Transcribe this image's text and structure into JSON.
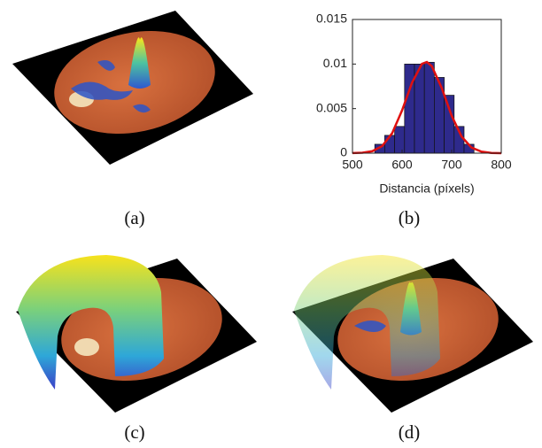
{
  "captions": [
    "(a)",
    "(b)",
    "(c)",
    "(d)"
  ],
  "chart_data": {
    "type": "histogram",
    "xlabel": "Distancia (píxels)",
    "bins": [
      545,
      565,
      585,
      605,
      625,
      645,
      665,
      685,
      705,
      725,
      745
    ],
    "values": [
      0.001,
      0.002,
      0.003,
      0.01,
      0.01,
      0.0102,
      0.0085,
      0.0065,
      0.003,
      0.001
    ],
    "color": "#2e2a8c",
    "curve": {
      "type": "line",
      "color": "#e01010",
      "x": [
        500,
        520,
        540,
        560,
        580,
        600,
        620,
        640,
        650,
        660,
        680,
        700,
        720,
        740,
        760,
        780,
        800
      ],
      "values": [
        1e-05,
        4.7e-05,
        0.00022,
        0.0008,
        0.00224,
        0.0048,
        0.0079,
        0.01002,
        0.01023,
        0.00976,
        0.0073,
        0.0042,
        0.00186,
        0.00063,
        0.00017,
        3e-05,
        5e-06
      ]
    },
    "xlim": [
      500,
      800
    ],
    "xticks": [
      500,
      600,
      700,
      800
    ],
    "ylim": [
      0,
      0.015
    ],
    "yticks": [
      0,
      0.005,
      0.01,
      0.015
    ]
  }
}
